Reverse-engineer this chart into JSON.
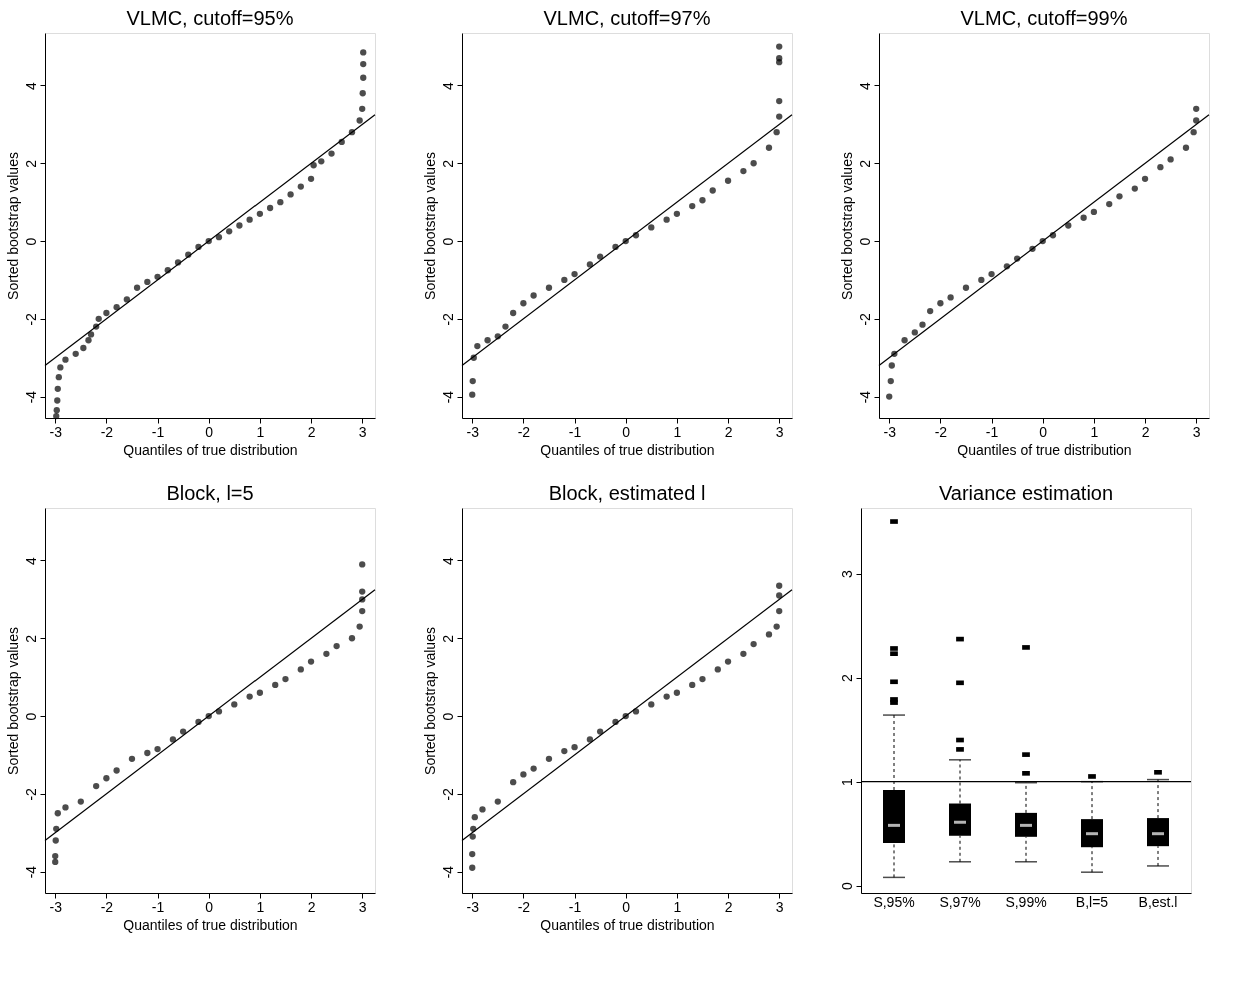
{
  "chart_data": [
    {
      "type": "scatter",
      "title": "VLMC, cutoff=95%",
      "xlabel": "Quantiles of true distribution",
      "ylabel": "Sorted bootstrap values",
      "xlim": [
        -3.2,
        3.25
      ],
      "ylim": [
        -4.55,
        5.35
      ],
      "xticks": [
        -3,
        -2,
        -1,
        0,
        1,
        2,
        3
      ],
      "yticks": [
        -4,
        -2,
        0,
        2,
        4
      ],
      "marker": "circle",
      "grid": false,
      "series": [
        {
          "color": "#000000",
          "x": [
            -2.98,
            -2.97,
            -2.96,
            -2.95,
            -2.93,
            -2.9,
            -2.8,
            -2.6,
            -2.45,
            -2.35,
            -2.3,
            -2.2,
            -2.15,
            -2.0,
            -1.8,
            -1.6,
            -1.4,
            -1.2,
            -1.0,
            -0.8,
            -0.6,
            -0.4,
            -0.2,
            0,
            0.2,
            0.4,
            0.6,
            0.8,
            1.0,
            1.2,
            1.4,
            1.6,
            1.8,
            2.0,
            2.05,
            2.2,
            2.4,
            2.6,
            2.8,
            2.95,
            3.0,
            3.01,
            3.02,
            3.02,
            3.02
          ],
          "values": [
            -4.5,
            -4.35,
            -4.1,
            -3.8,
            -3.5,
            -3.25,
            -3.05,
            -2.9,
            -2.75,
            -2.55,
            -2.4,
            -2.2,
            -2.0,
            -1.85,
            -1.7,
            -1.5,
            -1.2,
            -1.05,
            -0.92,
            -0.75,
            -0.55,
            -0.35,
            -0.15,
            0,
            0.1,
            0.25,
            0.4,
            0.55,
            0.7,
            0.85,
            1.0,
            1.2,
            1.4,
            1.6,
            1.95,
            2.05,
            2.25,
            2.55,
            2.8,
            3.1,
            3.4,
            3.8,
            4.2,
            4.55,
            4.85
          ]
        },
        {
          "type": "line",
          "marker": "none",
          "color": "#000000",
          "x": [
            -3.2,
            3.25
          ],
          "values": [
            -3.2,
            3.25
          ]
        }
      ]
    },
    {
      "type": "scatter",
      "title": "VLMC, cutoff=97%",
      "xlabel": "Quantiles of true distribution",
      "ylabel": "Sorted bootstrap values",
      "xlim": [
        -3.2,
        3.25
      ],
      "ylim": [
        -4.55,
        5.35
      ],
      "xticks": [
        -3,
        -2,
        -1,
        0,
        1,
        2,
        3
      ],
      "yticks": [
        -4,
        -2,
        0,
        2,
        4
      ],
      "marker": "circle",
      "grid": false,
      "series": [
        {
          "color": "#000000",
          "x": [
            -3.0,
            -2.99,
            -2.97,
            -2.9,
            -2.7,
            -2.5,
            -2.35,
            -2.2,
            -2.0,
            -1.8,
            -1.5,
            -1.2,
            -1.0,
            -0.7,
            -0.5,
            -0.2,
            0,
            0.2,
            0.5,
            0.8,
            1.0,
            1.3,
            1.5,
            1.7,
            2.0,
            2.3,
            2.5,
            2.8,
            2.95,
            3.0,
            3.0,
            3.0,
            3.0,
            3.0
          ],
          "values": [
            -3.95,
            -3.6,
            -3.0,
            -2.7,
            -2.55,
            -2.45,
            -2.2,
            -1.85,
            -1.6,
            -1.4,
            -1.2,
            -1.0,
            -0.85,
            -0.6,
            -0.4,
            -0.15,
            0,
            0.15,
            0.35,
            0.55,
            0.7,
            0.9,
            1.05,
            1.3,
            1.55,
            1.8,
            2.0,
            2.4,
            2.8,
            3.2,
            3.6,
            4.6,
            4.7,
            5.0
          ]
        },
        {
          "type": "line",
          "marker": "none",
          "color": "#000000",
          "x": [
            -3.2,
            3.25
          ],
          "values": [
            -3.2,
            3.25
          ]
        }
      ]
    },
    {
      "type": "scatter",
      "title": "VLMC, cutoff=99%",
      "xlabel": "Quantiles of true distribution",
      "ylabel": "Sorted bootstrap values",
      "xlim": [
        -3.2,
        3.25
      ],
      "ylim": [
        -4.55,
        5.35
      ],
      "xticks": [
        -3,
        -2,
        -1,
        0,
        1,
        2,
        3
      ],
      "yticks": [
        -4,
        -2,
        0,
        2,
        4
      ],
      "marker": "circle",
      "grid": false,
      "series": [
        {
          "color": "#000000",
          "x": [
            -3.0,
            -2.97,
            -2.95,
            -2.9,
            -2.7,
            -2.5,
            -2.35,
            -2.2,
            -2.0,
            -1.8,
            -1.5,
            -1.2,
            -1.0,
            -0.7,
            -0.5,
            -0.2,
            0,
            0.2,
            0.5,
            0.8,
            1.0,
            1.3,
            1.5,
            1.8,
            2.0,
            2.3,
            2.5,
            2.8,
            2.95,
            3.0,
            3.0
          ],
          "values": [
            -4.0,
            -3.6,
            -3.2,
            -2.9,
            -2.55,
            -2.35,
            -2.15,
            -1.8,
            -1.6,
            -1.45,
            -1.2,
            -1.0,
            -0.85,
            -0.65,
            -0.45,
            -0.2,
            0,
            0.15,
            0.4,
            0.6,
            0.75,
            0.95,
            1.15,
            1.35,
            1.6,
            1.9,
            2.1,
            2.4,
            2.8,
            3.1,
            3.4
          ]
        },
        {
          "type": "line",
          "marker": "none",
          "color": "#000000",
          "x": [
            -3.2,
            3.25
          ],
          "values": [
            -3.2,
            3.25
          ]
        }
      ]
    },
    {
      "type": "scatter",
      "title": "Block, l=5",
      "xlabel": "Quantiles of true distribution",
      "ylabel": "Sorted bootstrap values",
      "xlim": [
        -3.2,
        3.25
      ],
      "ylim": [
        -4.55,
        5.35
      ],
      "xticks": [
        -3,
        -2,
        -1,
        0,
        1,
        2,
        3
      ],
      "yticks": [
        -4,
        -2,
        0,
        2,
        4
      ],
      "marker": "circle",
      "grid": false,
      "series": [
        {
          "color": "#000000",
          "x": [
            -3.0,
            -3.0,
            -2.99,
            -2.98,
            -2.95,
            -2.8,
            -2.5,
            -2.2,
            -2.0,
            -1.8,
            -1.5,
            -1.2,
            -1.0,
            -0.7,
            -0.5,
            -0.2,
            0,
            0.2,
            0.5,
            0.8,
            1.0,
            1.3,
            1.5,
            1.8,
            2.0,
            2.3,
            2.5,
            2.8,
            2.95,
            3.0,
            3.0,
            3.0,
            3.0
          ],
          "values": [
            -3.75,
            -3.6,
            -3.2,
            -2.9,
            -2.5,
            -2.35,
            -2.2,
            -1.8,
            -1.6,
            -1.4,
            -1.1,
            -0.95,
            -0.85,
            -0.6,
            -0.4,
            -0.15,
            0,
            0.12,
            0.3,
            0.5,
            0.6,
            0.8,
            0.95,
            1.2,
            1.4,
            1.6,
            1.8,
            2.0,
            2.3,
            2.7,
            3.0,
            3.2,
            3.9
          ]
        },
        {
          "type": "line",
          "marker": "none",
          "color": "#000000",
          "x": [
            -3.2,
            3.25
          ],
          "values": [
            -3.2,
            3.25
          ]
        }
      ]
    },
    {
      "type": "scatter",
      "title": "Block, estimated l",
      "xlabel": "Quantiles of true distribution",
      "ylabel": "Sorted bootstrap values",
      "xlim": [
        -3.2,
        3.25
      ],
      "ylim": [
        -4.55,
        5.35
      ],
      "xticks": [
        -3,
        -2,
        -1,
        0,
        1,
        2,
        3
      ],
      "yticks": [
        -4,
        -2,
        0,
        2,
        4
      ],
      "marker": "circle",
      "grid": false,
      "series": [
        {
          "color": "#000000",
          "x": [
            -3.0,
            -3.0,
            -2.99,
            -2.98,
            -2.95,
            -2.8,
            -2.5,
            -2.2,
            -2.0,
            -1.8,
            -1.5,
            -1.2,
            -1.0,
            -0.7,
            -0.5,
            -0.2,
            0,
            0.2,
            0.5,
            0.8,
            1.0,
            1.3,
            1.5,
            1.8,
            2.0,
            2.3,
            2.5,
            2.8,
            2.95,
            3.0,
            3.0,
            3.0
          ],
          "values": [
            -3.9,
            -3.55,
            -3.1,
            -2.9,
            -2.6,
            -2.4,
            -2.2,
            -1.7,
            -1.5,
            -1.35,
            -1.1,
            -0.9,
            -0.8,
            -0.6,
            -0.4,
            -0.15,
            0,
            0.12,
            0.3,
            0.5,
            0.6,
            0.8,
            0.95,
            1.2,
            1.4,
            1.6,
            1.85,
            2.1,
            2.3,
            2.7,
            3.1,
            3.35
          ]
        },
        {
          "type": "line",
          "marker": "none",
          "color": "#000000",
          "x": [
            -3.2,
            3.25
          ],
          "values": [
            -3.2,
            3.25
          ]
        }
      ]
    },
    {
      "type": "box",
      "title": "Variance estimation",
      "categories": [
        "S,95%",
        "S,97%",
        "S,99%",
        "B,l=5",
        "B,est.l"
      ],
      "ylim": [
        -0.07,
        3.63
      ],
      "yticks": [
        0,
        1,
        2,
        3
      ],
      "grid": false,
      "color": "#000000",
      "ref_lines": [
        {
          "axis": "y",
          "value": 1
        }
      ],
      "boxes": [
        {
          "low": 0.08,
          "q1": 0.41,
          "median": 0.58,
          "q3": 0.92,
          "high": 1.64,
          "outliers": [
            3.5,
            2.28,
            2.23,
            1.96,
            1.79,
            1.76
          ]
        },
        {
          "low": 0.23,
          "q1": 0.48,
          "median": 0.61,
          "q3": 0.79,
          "high": 1.21,
          "outliers": [
            2.37,
            1.95,
            1.4,
            1.31
          ]
        },
        {
          "low": 0.23,
          "q1": 0.47,
          "median": 0.58,
          "q3": 0.7,
          "high": 0.99,
          "outliers": [
            2.29,
            1.26,
            1.08
          ]
        },
        {
          "low": 0.13,
          "q1": 0.37,
          "median": 0.5,
          "q3": 0.64,
          "high": 1.0,
          "outliers": [
            1.05
          ]
        },
        {
          "low": 0.19,
          "q1": 0.38,
          "median": 0.5,
          "q3": 0.65,
          "high": 1.02,
          "outliers": [
            1.09
          ]
        }
      ]
    }
  ]
}
